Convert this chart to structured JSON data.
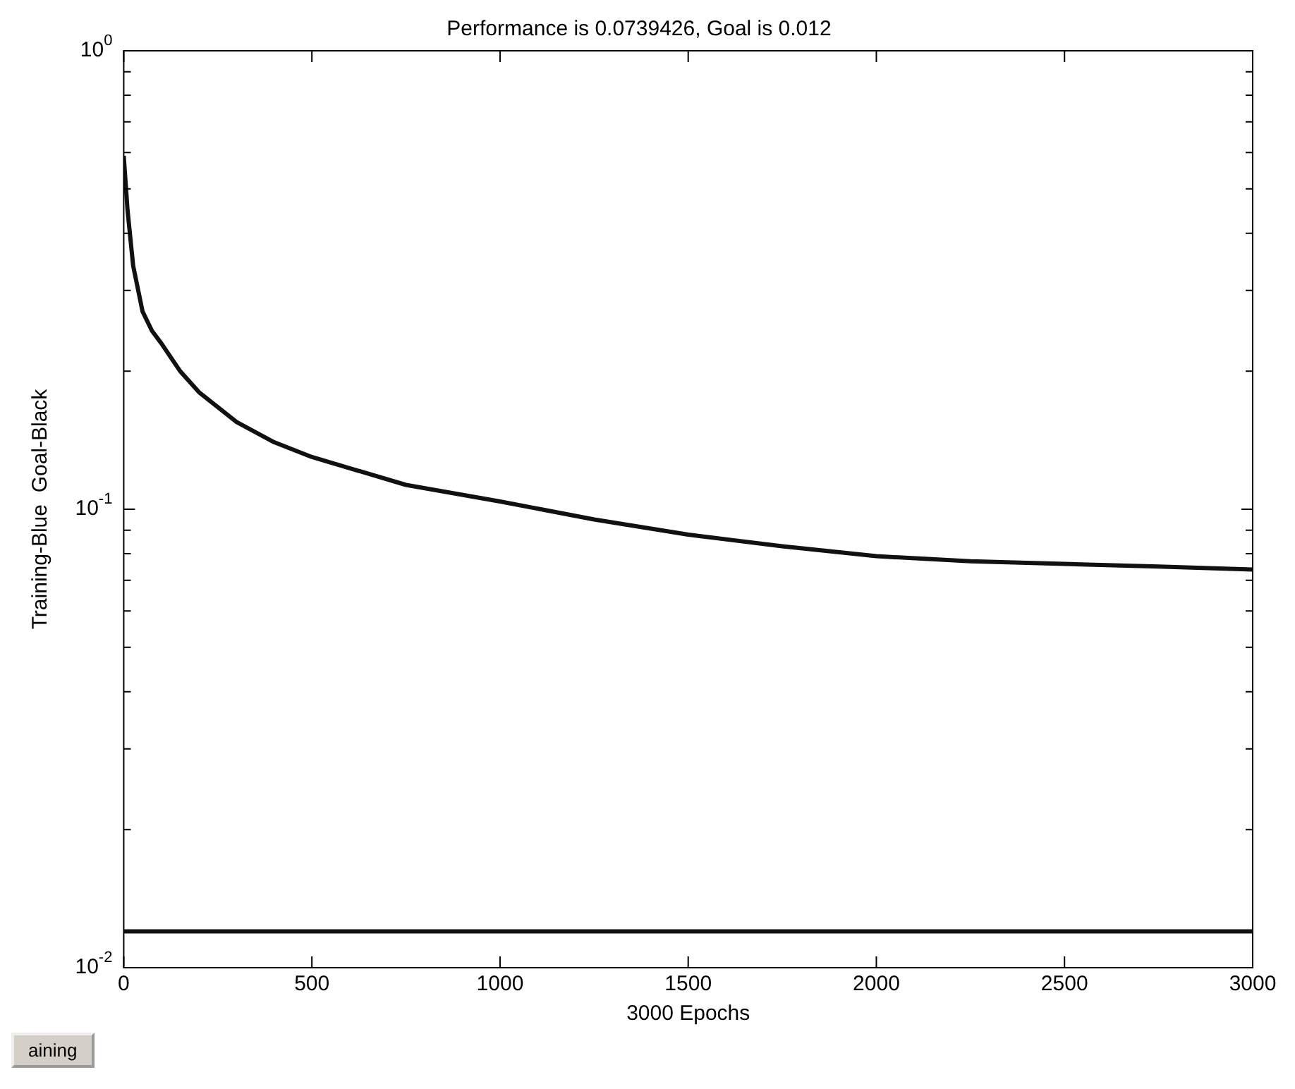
{
  "chart_data": {
    "type": "line",
    "title": "Performance is 0.0739426, Goal is 0.012",
    "xlabel": "3000 Epochs",
    "ylabel": "Training-Blue  Goal-Black",
    "log": "y",
    "grid": false,
    "xlim": [
      0,
      3000
    ],
    "xticks": [
      0,
      500,
      1000,
      1500,
      2000,
      2500,
      3000
    ],
    "ylim": [
      0.01,
      1
    ],
    "yticks": [
      {
        "value": 0.01,
        "label": "10$^{-2}$"
      },
      {
        "value": 0.02,
        "label": null
      },
      {
        "value": 0.03,
        "label": null
      },
      {
        "value": 0.04,
        "label": null
      },
      {
        "value": 0.05,
        "label": null
      },
      {
        "value": 0.06,
        "label": null
      },
      {
        "value": 0.07,
        "label": null
      },
      {
        "value": 0.08,
        "label": null
      },
      {
        "value": 0.09,
        "label": null
      },
      {
        "value": 0.1,
        "label": "10$^{-1}$"
      },
      {
        "value": 0.2,
        "label": null
      },
      {
        "value": 0.3,
        "label": null
      },
      {
        "value": 0.4,
        "label": null
      },
      {
        "value": 0.5,
        "label": null
      },
      {
        "value": 0.6,
        "label": null
      },
      {
        "value": 0.7,
        "label": null
      },
      {
        "value": 0.8,
        "label": null
      },
      {
        "value": 0.9,
        "label": null
      },
      {
        "value": 1,
        "label": "10$^{0}$"
      }
    ],
    "series": [
      {
        "color": "#111111",
        "x": [
          0,
          10,
          25,
          50,
          75,
          100,
          150,
          200,
          300,
          400,
          500,
          750,
          1000,
          1250,
          1500,
          1750,
          2000,
          2250,
          2500,
          2750,
          3000
        ],
        "values": [
          0.59,
          0.45,
          0.34,
          0.27,
          0.245,
          0.23,
          0.2,
          0.18,
          0.155,
          0.14,
          0.13,
          0.113,
          0.104,
          0.095,
          0.088,
          0.083,
          0.079,
          0.077,
          0.076,
          0.075,
          0.0739
        ]
      }
    ],
    "ref_lines": [
      {
        "axis": "y",
        "value": 0.012,
        "color": "#111111"
      }
    ],
    "annotations": [
      "aining"
    ]
  }
}
